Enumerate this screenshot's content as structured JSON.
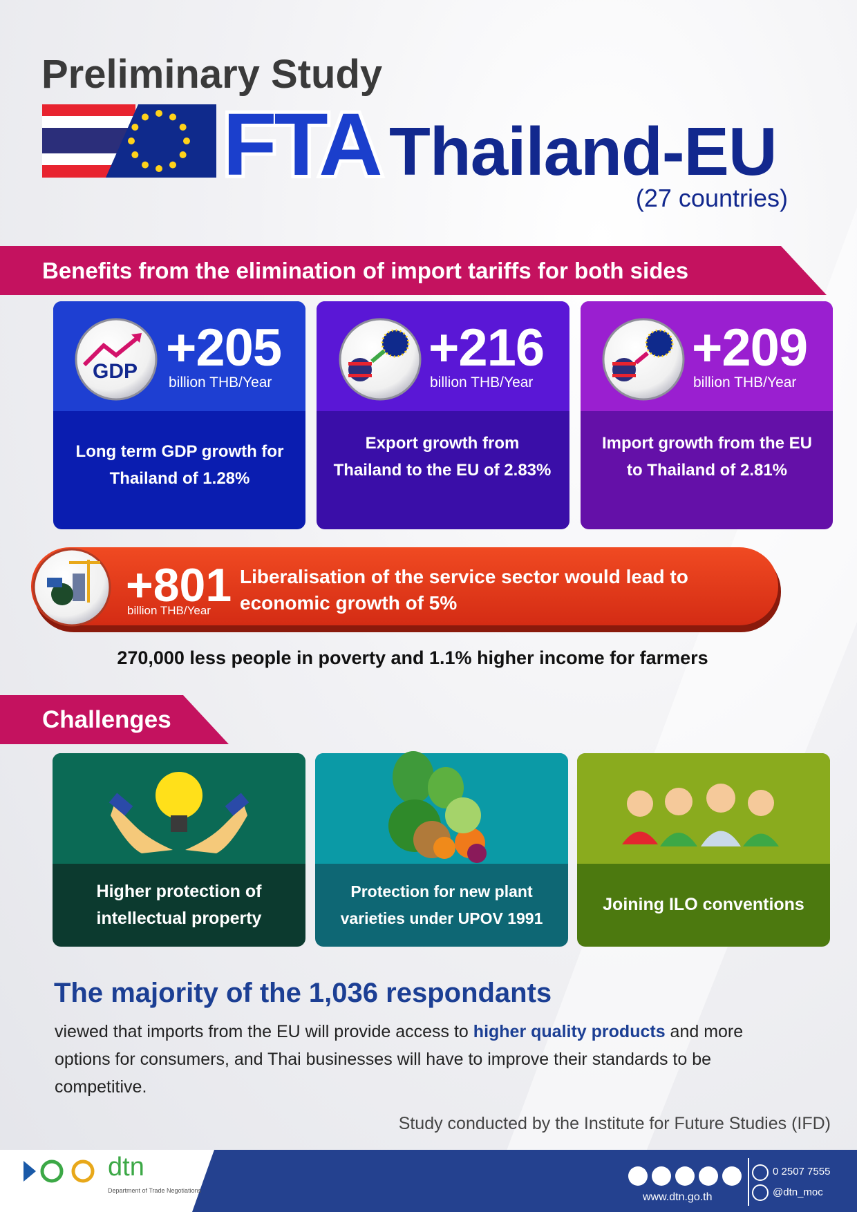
{
  "header": {
    "title": "Preliminary Study",
    "fta": "FTA",
    "region": "Thailand-EU",
    "countries": "(27 countries)"
  },
  "benefits": {
    "heading": "Benefits from the elimination of import tariffs for both sides",
    "cards": [
      {
        "icon_label": "GDP",
        "value": "+205",
        "unit": "billion THB/Year",
        "description": "Long term GDP growth for Thailand of 1.28%"
      },
      {
        "value": "+216",
        "unit": "billion THB/Year",
        "description": "Export growth from Thailand to the EU of 2.83%"
      },
      {
        "value": "+209",
        "unit": "billion THB/Year",
        "description": "Import growth from the EU to Thailand of 2.81%"
      }
    ],
    "services": {
      "value": "+801",
      "unit": "billion THB/Year",
      "description": "Liberalisation of the service sector would lead to economic growth of 5%"
    },
    "poverty": "270,000 less people in poverty and 1.1% higher income for farmers"
  },
  "challenges": {
    "heading": "Challenges",
    "items": [
      "Higher protection of intellectual property",
      "Protection for new plant varieties under UPOV 1991",
      "Joining ILO conventions"
    ]
  },
  "survey": {
    "heading": "The majority of the 1,036 respondants",
    "text": [
      "viewed that imports from the EU will provide access to ",
      "higher quality products",
      " and more options for consumers, and Thai businesses will have to improve their standards to be competitive."
    ],
    "credit": "Study conducted by the Institute for Future Studies (IFD)"
  },
  "footer": {
    "logo": "dtn",
    "department": "Department of Trade Negotiations",
    "phone": "0 2507 7555",
    "line": "@dtn_moc",
    "website": "www.dtn.go.th"
  }
}
